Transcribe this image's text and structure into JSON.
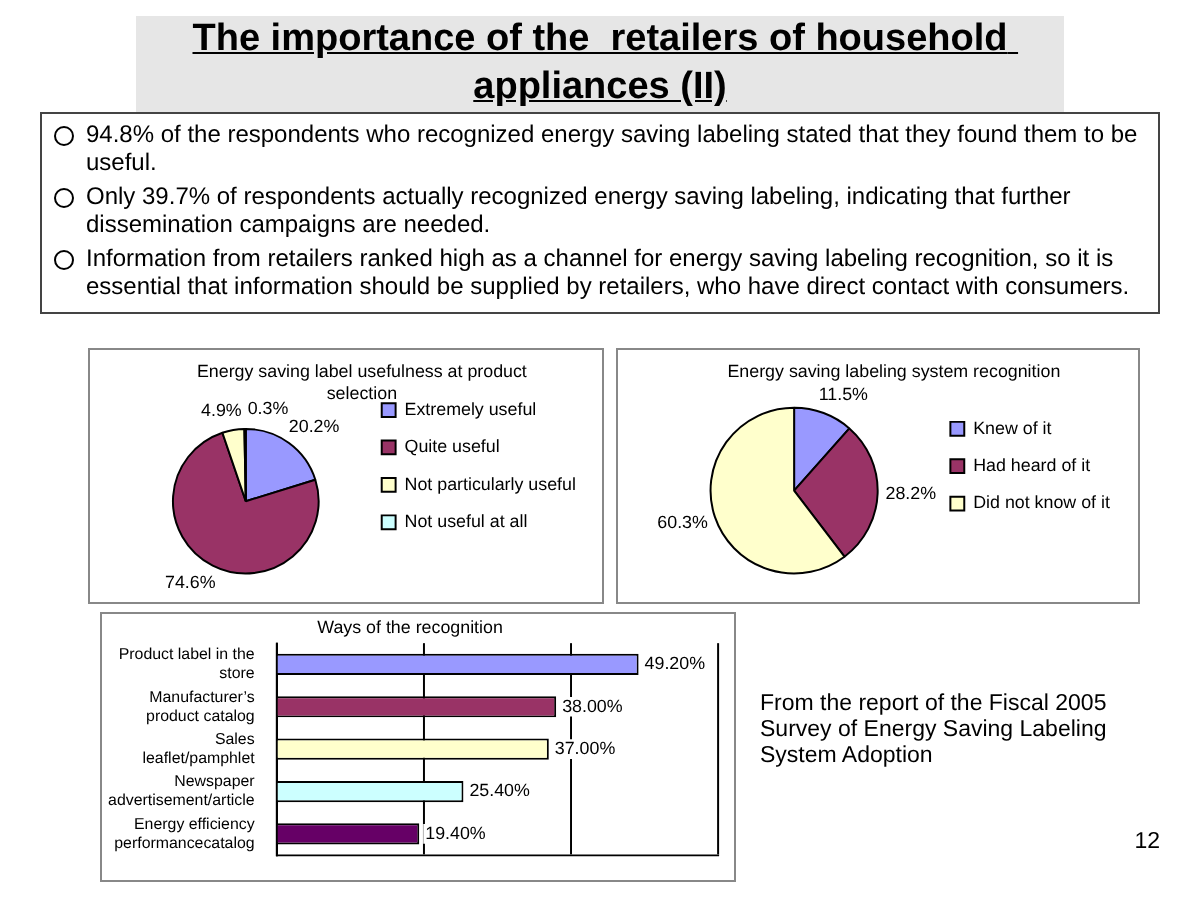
{
  "chart_data": [
    {
      "type": "other",
      "title": "The importance of the  retailers of household appliances (II)",
      "annotations": [
        "94.8% of the respondents who recognized energy saving labeling stated that they found them to be useful.",
        "Only 39.7% of respondents actually recognized energy saving labeling, indicating that further dissemination campaigns are needed.",
        "Information from retailers ranked high as a channel for energy saving labeling recognition, so it is essential that information should be supplied by retailers, who have direct contact with consumers."
      ]
    },
    {
      "type": "pie",
      "title": "Energy saving label usefulness at product selection",
      "categories": [
        "Extremely useful",
        "Quite useful",
        "Not particularly useful",
        "Not useful at all"
      ],
      "values": [
        20.2,
        74.6,
        4.9,
        0.3
      ],
      "colors": [
        "#9999ff",
        "#993366",
        "#ffffcc",
        "#ccffff"
      ],
      "value_labels": [
        "20.2%",
        "74.6%",
        "4.9%",
        "0.3%"
      ],
      "legend": "right"
    },
    {
      "type": "pie",
      "title": "Energy saving labeling system recognition",
      "categories": [
        "Knew of it",
        "Had heard of it",
        "Did not know of it"
      ],
      "values": [
        11.5,
        28.2,
        60.3
      ],
      "colors": [
        "#9999ff",
        "#993366",
        "#ffffcc"
      ],
      "value_labels": [
        "11.5%",
        "28.2%",
        "60.3%"
      ],
      "legend": "right"
    },
    {
      "type": "bar",
      "orientation": "horizontal",
      "title": "Ways of the recognition",
      "categories": [
        "Product label in the store",
        "Manufacturer’s product catalog",
        "Sales leaflet/pamphlet",
        "Newspaper advertisement/article",
        "Energy efficiency performancecatalog"
      ],
      "values": [
        49.2,
        38,
        37,
        25.4,
        19.4
      ],
      "colors": [
        "#9999ff",
        "#993366",
        "#ffffcc",
        "#ccffff",
        "#660066"
      ],
      "value_labels": [
        "49.20%",
        "38.00%",
        "37.00%",
        "25.40%",
        "19.40%"
      ],
      "xlim": [
        0,
        60
      ],
      "xticks": [
        {
          "value": 0,
          "label": null
        },
        {
          "value": 20,
          "label": null
        },
        {
          "value": 40,
          "label": null
        },
        {
          "value": 60,
          "label": null
        }
      ],
      "grid": "x",
      "tick_labels": "y",
      "legend": false,
      "annotations": [
        "From the report of the Fiscal 2005 Survey of Energy Saving Labeling System Adoption",
        "12"
      ]
    }
  ]
}
